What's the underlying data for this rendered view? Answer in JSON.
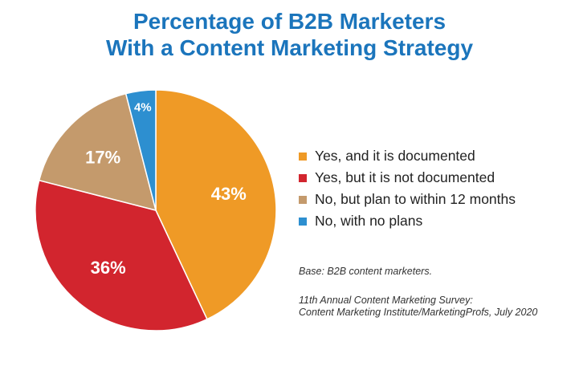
{
  "title": {
    "line1": "Percentage of B2B Marketers",
    "line2": "With a Content Marketing Strategy"
  },
  "chart_data": {
    "type": "pie",
    "title": "Percentage of B2B Marketers With a Content Marketing Strategy",
    "categories": [
      "Yes, and it is documented",
      "Yes, but it is not documented",
      "No, but plan to within 12 months",
      "No, with no plans"
    ],
    "values": [
      43,
      36,
      17,
      4
    ],
    "labels": [
      "43%",
      "36%",
      "17%",
      "4%"
    ],
    "colors": [
      "#ef9a26",
      "#d2252e",
      "#c49a6c",
      "#2d8fd0"
    ],
    "label_color": "#ffffff",
    "legend_position": "right",
    "start": "top, clockwise"
  },
  "notes": {
    "base": "Base: B2B content marketers.",
    "source_line1": "11th Annual Content Marketing Survey:",
    "source_line2": "Content Marketing Institute/MarketingProfs, July 2020"
  }
}
